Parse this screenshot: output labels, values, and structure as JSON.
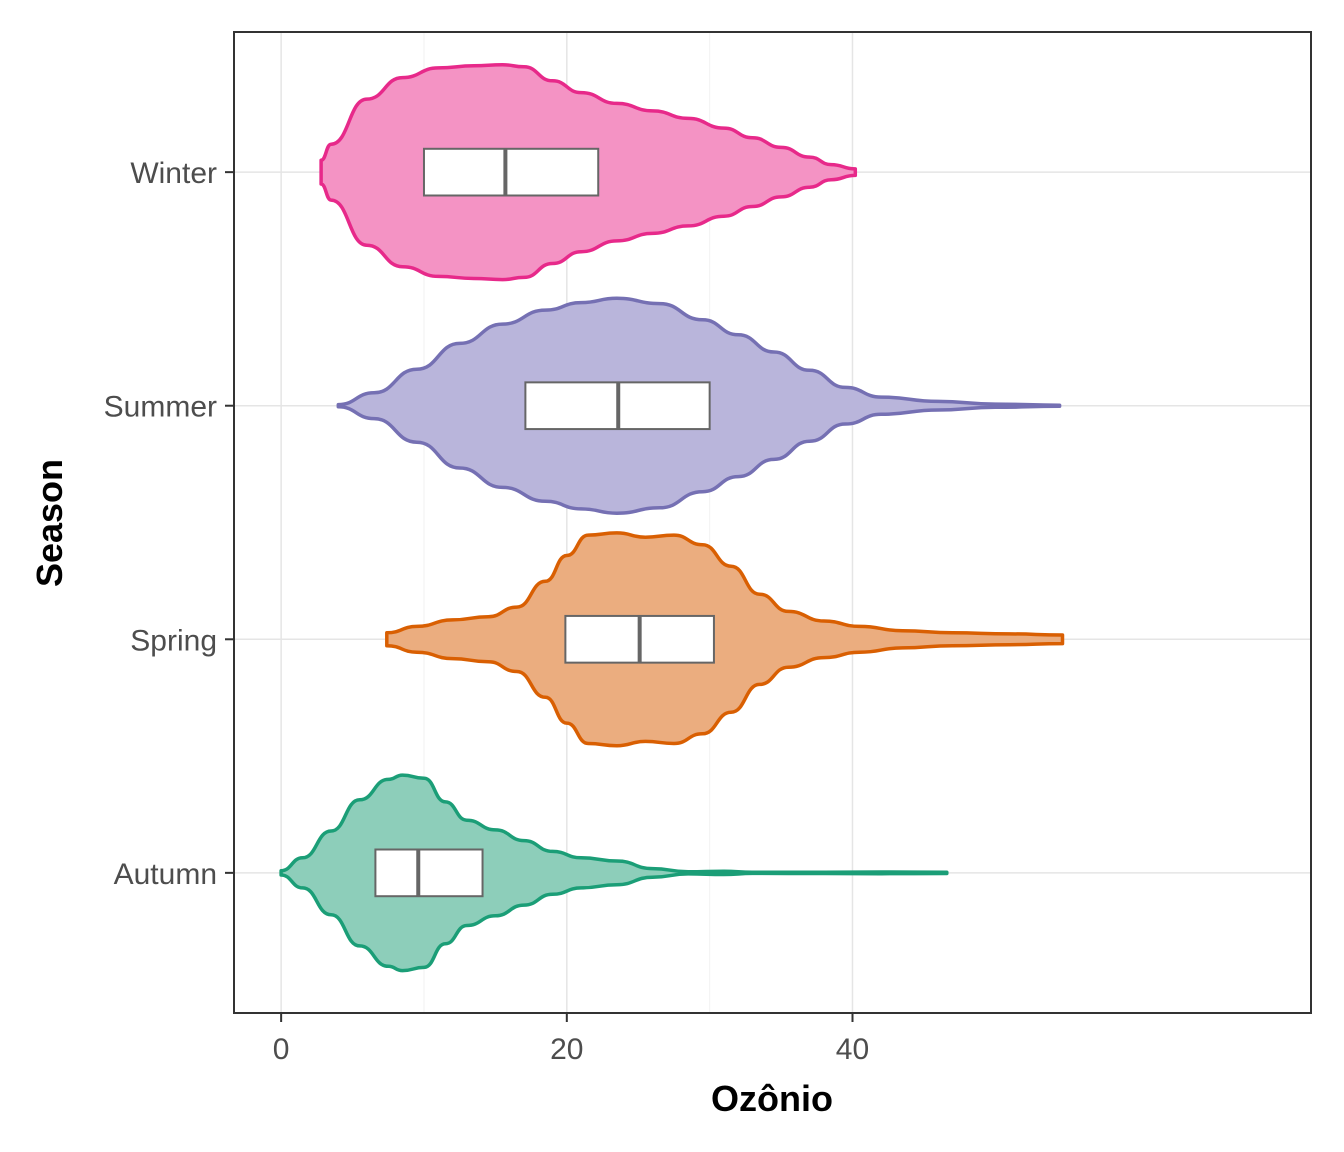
{
  "chart_data": {
    "type": "violin",
    "orientation": "horizontal",
    "xlabel": "Ozônio",
    "ylabel": "Season",
    "xlim": [
      -3.3,
      72.1
    ],
    "x_ticks": [
      0,
      20,
      40
    ],
    "grid": true,
    "legend": "none",
    "categories": [
      "Winter",
      "Summer",
      "Spring",
      "Autumn"
    ],
    "series": [
      {
        "name": "Winter",
        "color": "#e7298a",
        "fill": "#f493c4",
        "density": [
          [
            2.8,
            0.11
          ],
          [
            3.5,
            0.26
          ],
          [
            6.0,
            0.68
          ],
          [
            8.5,
            0.88
          ],
          [
            11.0,
            0.97
          ],
          [
            13.5,
            0.99
          ],
          [
            15.5,
            1.0
          ],
          [
            17.0,
            0.98
          ],
          [
            19.0,
            0.85
          ],
          [
            21.0,
            0.74
          ],
          [
            23.5,
            0.64
          ],
          [
            26.0,
            0.57
          ],
          [
            28.5,
            0.5
          ],
          [
            31.0,
            0.41
          ],
          [
            33.0,
            0.32
          ],
          [
            35.0,
            0.23
          ],
          [
            37.0,
            0.14
          ],
          [
            38.5,
            0.07
          ],
          [
            40.2,
            0.03
          ]
        ],
        "box": {
          "q1": 10.0,
          "median": 15.7,
          "q3": 22.2
        }
      },
      {
        "name": "Summer",
        "color": "#7570b3",
        "fill": "#b9b5db",
        "density": [
          [
            4.0,
            0.01
          ],
          [
            6.5,
            0.12
          ],
          [
            9.5,
            0.34
          ],
          [
            12.5,
            0.58
          ],
          [
            15.5,
            0.76
          ],
          [
            18.5,
            0.89
          ],
          [
            21.0,
            0.96
          ],
          [
            23.5,
            1.0
          ],
          [
            26.5,
            0.95
          ],
          [
            29.5,
            0.8
          ],
          [
            32.0,
            0.66
          ],
          [
            34.5,
            0.5
          ],
          [
            37.0,
            0.33
          ],
          [
            39.5,
            0.17
          ],
          [
            42.0,
            0.08
          ],
          [
            46.0,
            0.04
          ],
          [
            50.0,
            0.015
          ],
          [
            54.5,
            0.005
          ]
        ],
        "box": {
          "q1": 17.1,
          "median": 23.6,
          "q3": 30.0
        }
      },
      {
        "name": "Spring",
        "color": "#d95f02",
        "fill": "#ebad7f",
        "density": [
          [
            7.4,
            0.06
          ],
          [
            9.5,
            0.12
          ],
          [
            12.0,
            0.18
          ],
          [
            14.5,
            0.21
          ],
          [
            16.5,
            0.3
          ],
          [
            18.5,
            0.54
          ],
          [
            20.0,
            0.78
          ],
          [
            21.5,
            0.97
          ],
          [
            23.5,
            0.99
          ],
          [
            25.5,
            0.95
          ],
          [
            27.5,
            0.97
          ],
          [
            29.5,
            0.88
          ],
          [
            31.5,
            0.68
          ],
          [
            33.5,
            0.42
          ],
          [
            35.5,
            0.26
          ],
          [
            38.0,
            0.17
          ],
          [
            40.5,
            0.12
          ],
          [
            43.5,
            0.08
          ],
          [
            47.0,
            0.06
          ],
          [
            51.0,
            0.05
          ],
          [
            54.7,
            0.04
          ]
        ],
        "box": {
          "q1": 19.9,
          "median": 25.1,
          "q3": 30.3
        }
      },
      {
        "name": "Autumn",
        "color": "#1b9e77",
        "fill": "#8dceba",
        "density": [
          [
            0.0,
            0.02
          ],
          [
            1.5,
            0.14
          ],
          [
            3.5,
            0.39
          ],
          [
            5.5,
            0.68
          ],
          [
            7.5,
            0.87
          ],
          [
            8.5,
            0.91
          ],
          [
            10.0,
            0.88
          ],
          [
            11.5,
            0.66
          ],
          [
            13.0,
            0.49
          ],
          [
            15.0,
            0.4
          ],
          [
            17.0,
            0.3
          ],
          [
            19.0,
            0.2
          ],
          [
            21.0,
            0.14
          ],
          [
            23.5,
            0.11
          ],
          [
            26.0,
            0.04
          ],
          [
            28.5,
            0.01
          ],
          [
            31.0,
            0.015
          ],
          [
            33.0,
            0.005
          ],
          [
            38.0,
            0.006
          ],
          [
            42.0,
            0.008
          ],
          [
            46.6,
            0.006
          ]
        ],
        "box": {
          "q1": 6.6,
          "median": 9.6,
          "q3": 14.1
        }
      }
    ]
  }
}
